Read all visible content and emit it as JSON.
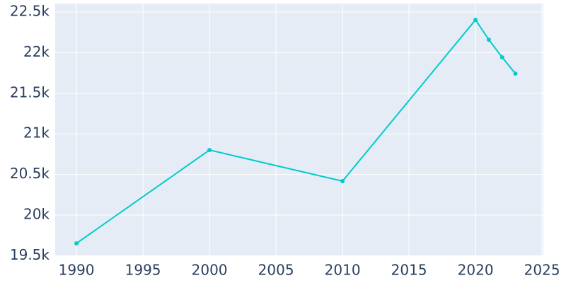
{
  "chart_data": {
    "type": "line",
    "x": [
      1990,
      2000,
      2010,
      2020,
      2021,
      2022,
      2023
    ],
    "series": [
      {
        "color": "#00cccc",
        "values": [
          19652,
          20801,
          20418,
          22404,
          22160,
          21943,
          21742
        ]
      }
    ],
    "xlim": [
      1988.4,
      2025.1
    ],
    "xticks": [
      1990,
      1995,
      2000,
      2005,
      2010,
      2015,
      2020,
      2025
    ],
    "ylim": [
      19495,
      22605
    ],
    "yticks": [
      {
        "value": 19500,
        "label": "19.5k"
      },
      {
        "value": 20000,
        "label": "20k"
      },
      {
        "value": 20500,
        "label": "20.5k"
      },
      {
        "value": 21000,
        "label": "21k"
      },
      {
        "value": 21500,
        "label": "21.5k"
      },
      {
        "value": 22000,
        "label": "22k"
      },
      {
        "value": 22500,
        "label": "22.5k"
      }
    ],
    "grid": true
  }
}
